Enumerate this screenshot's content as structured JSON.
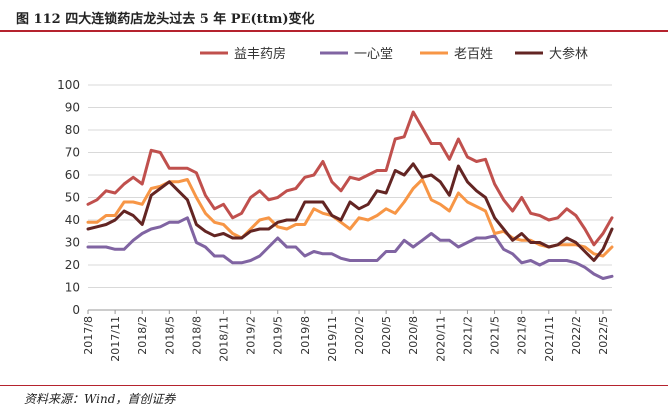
{
  "header": {
    "title": "图 112  四大连锁药店龙头过去 5 年 PE(ttm)变化"
  },
  "footer": {
    "source": "资料来源：Wind，首创证券"
  },
  "chart_data": {
    "type": "line",
    "title": "图 112  四大连锁药店龙头过去 5 年 PE(ttm)变化",
    "xlabel": "",
    "ylabel": "",
    "ylim": [
      0,
      100
    ],
    "yticks": [
      0,
      10,
      20,
      30,
      40,
      50,
      60,
      70,
      80,
      90,
      100
    ],
    "x_start": "2017/8",
    "x_end": "2022/7",
    "xtick_labels": [
      "2017/8",
      "2017/11",
      "2018/2",
      "2018/5",
      "2018/8",
      "2018/11",
      "2019/2",
      "2019/5",
      "2019/8",
      "2019/11",
      "2020/2",
      "2020/5",
      "2020/8",
      "2020/11",
      "2021/2",
      "2021/5",
      "2021/8",
      "2021/11",
      "2022/2",
      "2022/5"
    ],
    "legend_position": "top",
    "series": [
      {
        "name": "益丰药房",
        "color": "#c0504d",
        "values": [
          47,
          49,
          53,
          52,
          56,
          59,
          56,
          71,
          70,
          63,
          63,
          63,
          61,
          51,
          45,
          47,
          41,
          43,
          50,
          53,
          49,
          50,
          53,
          54,
          59,
          60,
          66,
          57,
          53,
          59,
          58,
          60,
          62,
          62,
          76,
          77,
          88,
          81,
          74,
          74,
          67,
          76,
          68,
          66,
          67,
          56,
          49,
          44,
          50,
          43,
          42,
          40,
          41,
          45,
          42,
          36,
          29,
          34,
          41
        ]
      },
      {
        "name": "一心堂",
        "color": "#8064a2",
        "values": [
          28,
          28,
          28,
          27,
          27,
          31,
          34,
          36,
          37,
          39,
          39,
          41,
          30,
          28,
          24,
          24,
          21,
          21,
          22,
          24,
          28,
          32,
          28,
          28,
          24,
          26,
          25,
          25,
          23,
          22,
          22,
          22,
          22,
          26,
          26,
          31,
          28,
          31,
          34,
          31,
          31,
          28,
          30,
          32,
          32,
          33,
          27,
          25,
          21,
          22,
          20,
          22,
          22,
          22,
          21,
          19,
          16,
          14,
          15
        ]
      },
      {
        "name": "老百姓",
        "color": "#f79646",
        "values": [
          39,
          39,
          42,
          42,
          48,
          48,
          47,
          54,
          55,
          57,
          57,
          58,
          50,
          43,
          39,
          38,
          34,
          32,
          36,
          40,
          41,
          37,
          36,
          38,
          38,
          45,
          43,
          42,
          39,
          36,
          41,
          40,
          42,
          45,
          43,
          48,
          54,
          58,
          49,
          47,
          44,
          52,
          48,
          46,
          44,
          34,
          35,
          32,
          31,
          31,
          29,
          28,
          29,
          29,
          29,
          28,
          25,
          24,
          28
        ]
      },
      {
        "name": "大参林",
        "color": "#632523",
        "values": [
          36,
          37,
          38,
          40,
          44,
          42,
          38,
          51,
          54,
          57,
          53,
          49,
          38,
          35,
          33,
          34,
          32,
          32,
          35,
          36,
          36,
          39,
          40,
          40,
          48,
          48,
          48,
          42,
          40,
          48,
          45,
          47,
          53,
          52,
          62,
          60,
          65,
          59,
          60,
          57,
          51,
          64,
          57,
          53,
          50,
          41,
          36,
          31,
          34,
          30,
          30,
          28,
          29,
          32,
          30,
          26,
          22,
          27,
          36
        ]
      }
    ]
  }
}
